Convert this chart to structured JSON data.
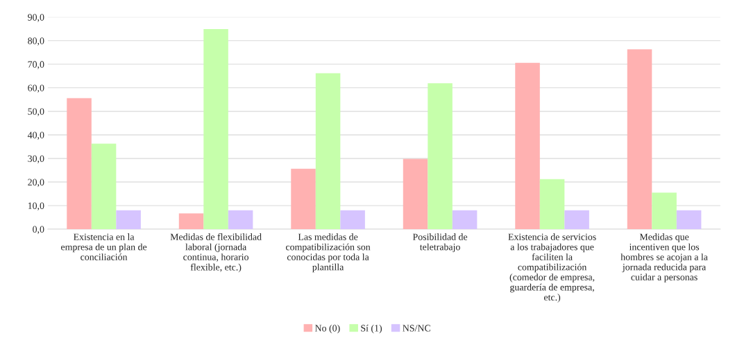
{
  "chart_data": {
    "type": "bar",
    "categories": [
      "Existencia en la empresa de un plan de conciliación",
      "Medidas de flexibilidad laboral (jornada continua, horario flexible, etc.)",
      "Las medidas de compatibilización son conocidas por toda la plantilla",
      "Posibilidad de teletrabajo",
      "Existencia de servicios a los trabajadores que faciliten la compatibilización (comedor de empresa, guardería de empresa, etc.)",
      "Medidas que incentiven que los hombres se acojan a la jornada reducida para cuidar a personas"
    ],
    "series": [
      {
        "name": "No (0)",
        "color": "#ffb1b1",
        "values": [
          55.6,
          6.7,
          25.6,
          29.8,
          70.6,
          76.3
        ]
      },
      {
        "name": "Sí (1)",
        "color": "#c6ffab",
        "values": [
          36.3,
          84.9,
          66.2,
          61.9,
          21.2,
          15.5
        ]
      },
      {
        "name": "NS/NC",
        "color": "#d6c4ff",
        "values": [
          8.0,
          8.0,
          8.0,
          8.0,
          8.0,
          8.0
        ]
      }
    ],
    "ylim": [
      0,
      90
    ],
    "yticks": [
      {
        "value": 0,
        "label": "0,0"
      },
      {
        "value": 10,
        "label": "10,0"
      },
      {
        "value": 20,
        "label": "20,0"
      },
      {
        "value": 30,
        "label": "30,0"
      },
      {
        "value": 40,
        "label": "40,0"
      },
      {
        "value": 50,
        "label": "50,0"
      },
      {
        "value": 60,
        "label": "60,0"
      },
      {
        "value": 70,
        "label": "70,0"
      },
      {
        "value": 80,
        "label": "80,0"
      },
      {
        "value": 90,
        "label": "90,0"
      }
    ],
    "grid": "y",
    "legend": "bottom"
  }
}
